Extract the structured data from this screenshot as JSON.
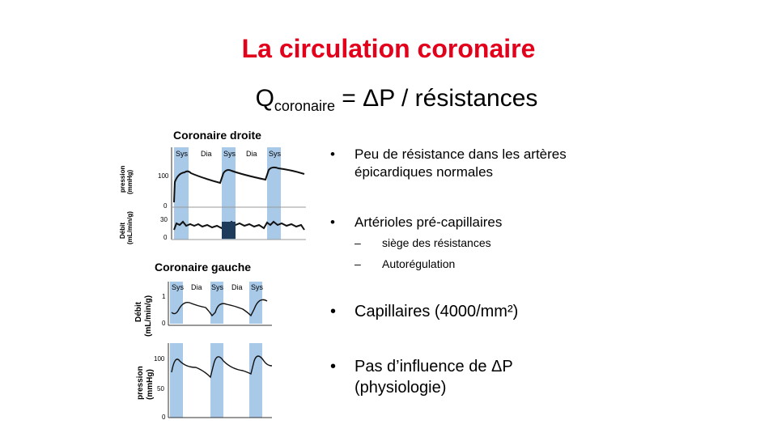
{
  "slide": {
    "title": "La circulation coronaire",
    "formula": {
      "q": "Q",
      "sub": "coronaire",
      "rest": " = ΔP / résistances"
    }
  },
  "right_panel": {
    "title": "Coronaire droite",
    "pressure_ylabel": [
      "pression",
      "(mmHg)"
    ],
    "flow_ylabel": [
      "Débit",
      "(mL/min/g)"
    ],
    "phases": [
      "Sys",
      "Dia",
      "Sys",
      "Dia",
      "Sys"
    ],
    "pressure_ticks": [
      "100",
      "0"
    ],
    "flow_ticks": [
      "30",
      "0"
    ]
  },
  "left_panel": {
    "title": "Coronaire gauche",
    "flow_ylabel": [
      "Débit",
      "(mL/min/g)"
    ],
    "pressure_ylabel": [
      "pression",
      "(mmHg)"
    ],
    "phases": [
      "Sys",
      "Dia",
      "Sys",
      "Dia",
      "Sys"
    ],
    "flow_ticks": [
      "1",
      "0"
    ],
    "pressure_ticks": [
      "100",
      "50",
      "0"
    ]
  },
  "bullets": [
    {
      "text": "Peu de résistance dans les artères",
      "text2": "épicardiques normales"
    },
    {
      "text": "Artérioles pré-capillaires",
      "sub": [
        "siège des résistances",
        "Autorégulation"
      ]
    },
    {
      "text": "Capillaires (4000/mm²)"
    },
    {
      "text": "Pas d’influence de ΔP",
      "text2": "(physiologie)"
    }
  ],
  "colors": {
    "title": "#e3001b",
    "systole_band": "#a9c9e8"
  }
}
